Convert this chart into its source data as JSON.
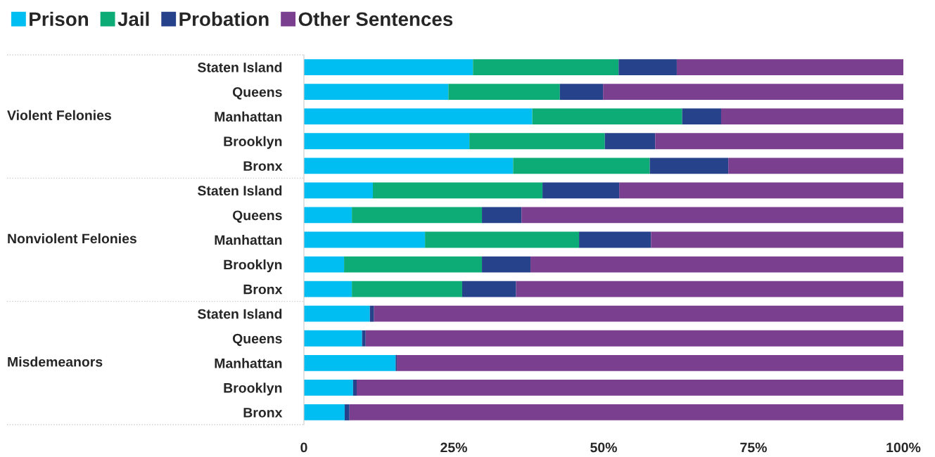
{
  "chart_data": {
    "type": "bar",
    "orientation": "horizontal",
    "stacked": true,
    "legend": "top left",
    "grid": false,
    "categories": [
      "Staten Island",
      "Queens",
      "Manhattan",
      "Brooklyn",
      "Bronx",
      "Staten Island",
      "Queens",
      "Manhattan",
      "Brooklyn",
      "Bronx",
      "Staten Island",
      "Queens",
      "Manhattan",
      "Brooklyn",
      "Bronx"
    ],
    "annotations": [
      "Violent Felonies",
      "Nonviolent Felonies",
      "Misdemeanors"
    ],
    "xlim": [
      0,
      100
    ],
    "xticks": [
      {
        "value": 0,
        "label": "0"
      },
      {
        "value": 25,
        "label": "25%"
      },
      {
        "value": 50,
        "label": "50%"
      },
      {
        "value": 75,
        "label": "75%"
      },
      {
        "value": 100,
        "label": "100%"
      }
    ],
    "series": [
      {
        "name": "Prison",
        "color": "#00bef2",
        "values": [
          28.2,
          24.1,
          38.1,
          27.6,
          34.9,
          11.5,
          8.0,
          20.2,
          6.7,
          8.0,
          11.0,
          9.7,
          15.3,
          8.2,
          6.8
        ]
      },
      {
        "name": "Jail",
        "color": "#0dab76",
        "values": [
          24.3,
          18.6,
          25.0,
          22.6,
          22.8,
          28.3,
          21.7,
          25.7,
          23.0,
          18.4,
          0,
          0,
          0,
          0,
          0
        ]
      },
      {
        "name": "Probation",
        "color": "#26428b",
        "values": [
          9.7,
          7.2,
          6.5,
          8.4,
          13.1,
          12.8,
          6.6,
          12.0,
          8.1,
          9.0,
          0.7,
          0.6,
          0.2,
          0.6,
          0.8
        ]
      },
      {
        "name": "Other Sentences",
        "color": "#7b3f8f",
        "values": [
          37.8,
          50.1,
          30.4,
          41.4,
          29.2,
          47.4,
          63.7,
          42.1,
          62.2,
          64.6,
          88.3,
          89.7,
          84.5,
          91.2,
          92.4
        ]
      }
    ]
  }
}
